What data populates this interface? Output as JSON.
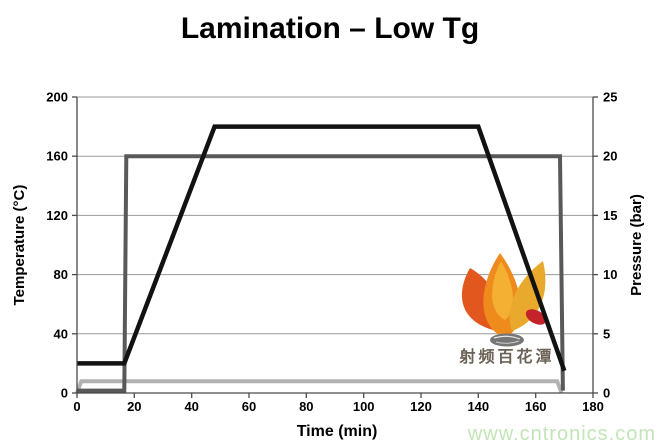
{
  "chart": {
    "title": "Lamination – Low Tg",
    "x_axis": {
      "label": "Time (min)",
      "ticks": [
        "0",
        "20",
        "40",
        "60",
        "80",
        "100",
        "120",
        "140",
        "160",
        "180"
      ]
    },
    "y_left": {
      "label": "Temperature (°C)",
      "ticks": [
        "200",
        "160",
        "120",
        "80",
        "40",
        "0"
      ]
    },
    "y_right": {
      "label": "Pressure (bar)",
      "ticks": [
        "25",
        "20",
        "15",
        "10",
        "5",
        "0"
      ]
    }
  },
  "watermark": {
    "logo_text": "射频百花潭",
    "url": "www.cntronics.com"
  },
  "chart_data": {
    "type": "line",
    "title": "Lamination – Low Tg",
    "xlabel": "Time (min)",
    "ylabel_left": "Temperature (°C)",
    "ylabel_right": "Pressure (bar)",
    "xlim": [
      0,
      180
    ],
    "ylim_left": [
      0,
      200
    ],
    "ylim_right": [
      0,
      25
    ],
    "x_ticks": [
      0,
      20,
      40,
      60,
      80,
      100,
      120,
      140,
      160,
      180
    ],
    "y_left_ticks": [
      0,
      40,
      80,
      120,
      160,
      200
    ],
    "y_right_ticks": [
      0,
      5,
      10,
      15,
      20,
      25
    ],
    "grid": true,
    "legend": "none",
    "series": [
      {
        "name": "temperature",
        "axis": "left",
        "color": "#121212",
        "width": 4.5,
        "points": [
          [
            0,
            20
          ],
          [
            16.5,
            20
          ],
          [
            48,
            180
          ],
          [
            140,
            180
          ],
          [
            170,
            15
          ]
        ]
      },
      {
        "name": "pressure",
        "axis": "right",
        "color": "#595959",
        "width": 4,
        "points": [
          [
            0,
            0.2
          ],
          [
            16.5,
            0.2
          ],
          [
            17.2,
            20
          ],
          [
            168.5,
            20
          ],
          [
            169.5,
            0.2
          ]
        ]
      },
      {
        "name": "pressure-low",
        "axis": "right",
        "color": "#b2b2b2",
        "width": 4,
        "points": [
          [
            0,
            0
          ],
          [
            1.5,
            1
          ],
          [
            167.5,
            1
          ],
          [
            169,
            0
          ]
        ]
      }
    ]
  }
}
